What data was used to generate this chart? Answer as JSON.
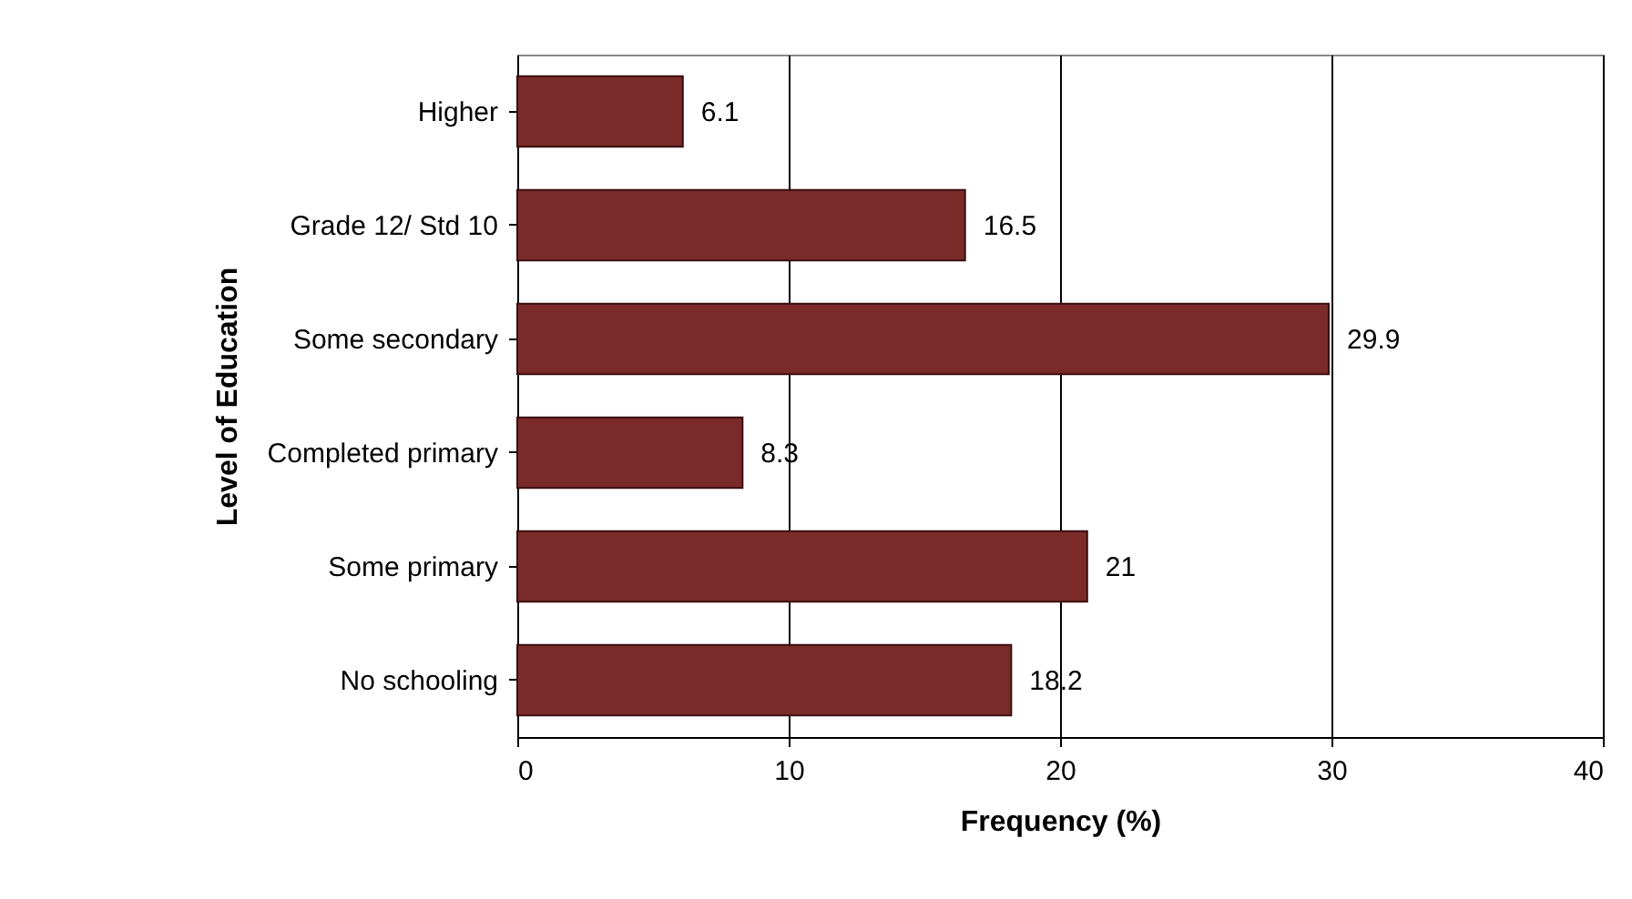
{
  "chart_data": {
    "type": "bar",
    "orientation": "horizontal",
    "xlabel": "Frequency (%)",
    "ylabel": "Level of Education",
    "categories": [
      "Higher",
      "Grade 12/ Std 10",
      "Some secondary",
      "Completed primary",
      "Some primary",
      "No schooling"
    ],
    "values": [
      6.1,
      16.5,
      29.9,
      8.3,
      21,
      18.2
    ],
    "color": "#7b2a2a",
    "xlim": [
      0,
      40
    ],
    "xticks": [
      0,
      10,
      20,
      30,
      40
    ],
    "grid": "x",
    "data_labels": true
  }
}
